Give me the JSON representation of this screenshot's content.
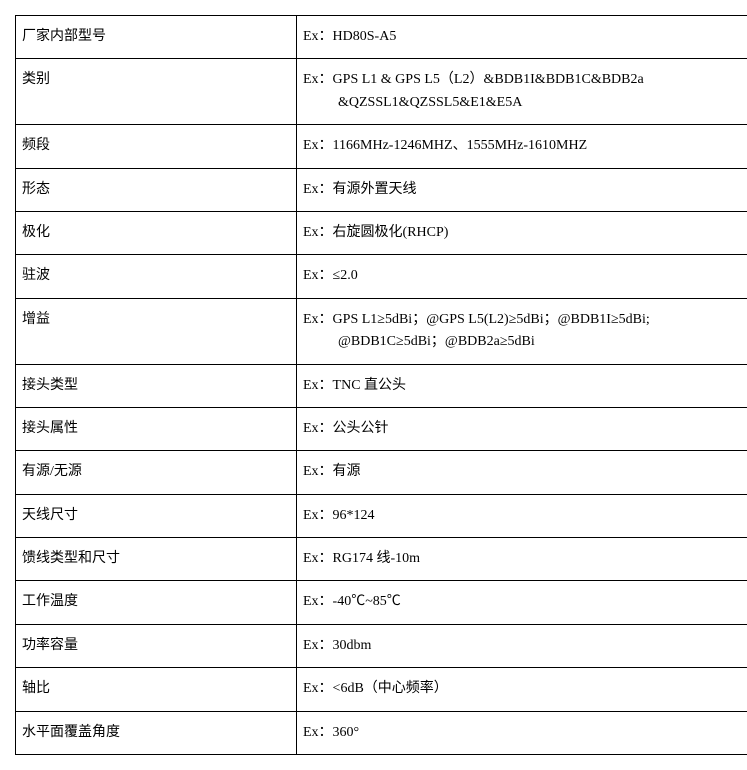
{
  "table": {
    "rows": [
      {
        "label": "厂家内部型号",
        "value": "Ex：HD80S-A5"
      },
      {
        "label": "类别",
        "value": "Ex：GPS L1 & GPS L5（L2）&BDB1I&BDB1C&BDB2a",
        "value2": "&QZSSL1&QZSSL5&E1&E5A"
      },
      {
        "label": "频段",
        "value": "Ex：1166MHz-1246MHZ、1555MHz-1610MHZ"
      },
      {
        "label": "形态",
        "value": "Ex：有源外置天线"
      },
      {
        "label": "极化",
        "value": "Ex：右旋圆极化(RHCP)"
      },
      {
        "label": "驻波",
        "value": "Ex：≤2.0"
      },
      {
        "label": "增益",
        "value": "Ex：GPS L1≥5dBi；@GPS L5(L2)≥5dBi；@BDB1I≥5dBi;",
        "value2": "@BDB1C≥5dBi；@BDB2a≥5dBi"
      },
      {
        "label": "接头类型",
        "value": "Ex：TNC 直公头"
      },
      {
        "label": "接头属性",
        "value": "Ex：公头公针"
      },
      {
        "label": "有源/无源",
        "value": "Ex：有源"
      },
      {
        "label": "天线尺寸",
        "value": "Ex：96*124"
      },
      {
        "label": "馈线类型和尺寸",
        "value": "Ex：RG174 线-10m"
      },
      {
        "label": "工作温度",
        "value": "Ex：-40℃~85℃"
      },
      {
        "label": "功率容量",
        "value": "Ex：30dbm"
      },
      {
        "label": "轴比",
        "value": "Ex：<6dB（中心频率）"
      },
      {
        "label": "水平面覆盖角度",
        "value": "Ex：360°"
      }
    ]
  },
  "styling": {
    "border_color": "#000000",
    "text_color": "#000000",
    "background_color": "#ffffff",
    "font_size": 14,
    "label_col_width": 268,
    "value_col_width": 449
  }
}
